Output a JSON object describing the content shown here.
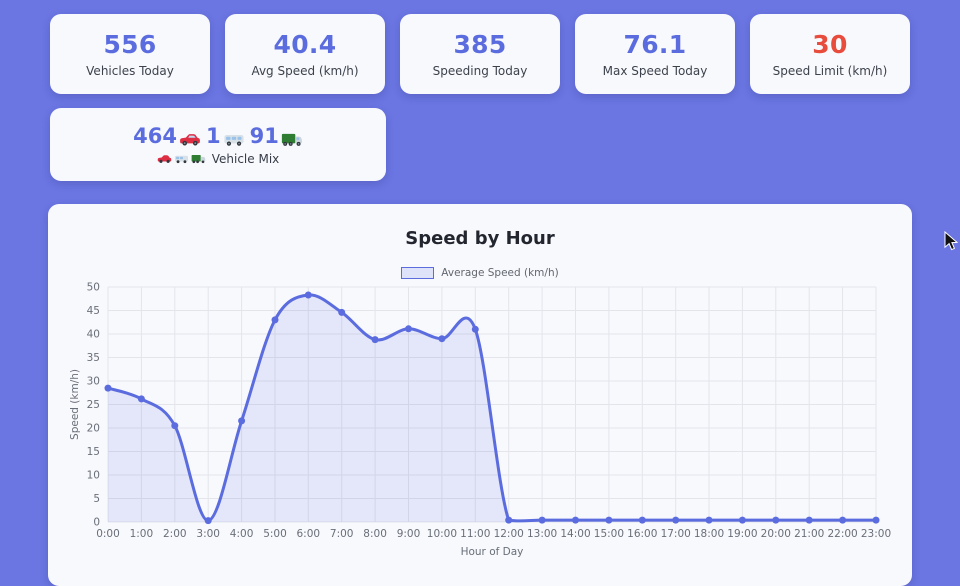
{
  "stats": [
    {
      "value": "556",
      "label": "Vehicles Today",
      "color": "#5b6cdf"
    },
    {
      "value": "40.4",
      "label": "Avg Speed (km/h)",
      "color": "#5b6cdf"
    },
    {
      "value": "385",
      "label": "Speeding Today",
      "color": "#5b6cdf"
    },
    {
      "value": "76.1",
      "label": "Max Speed Today",
      "color": "#5b6cdf"
    },
    {
      "value": "30",
      "label": "Speed Limit (km/h)",
      "color": "#e74c3c"
    }
  ],
  "vehicle_mix": {
    "items": [
      {
        "count": "464",
        "emoji": "🚗"
      },
      {
        "count": "1",
        "emoji": "🚐"
      },
      {
        "count": "91",
        "emoji": "🚛"
      }
    ],
    "label_emojis": "🚗🚐🚛",
    "label": "Vehicle Mix"
  },
  "chart_data": {
    "type": "line",
    "title": "Speed by Hour",
    "legend": "Average Speed (km/h)",
    "legend_position": "top",
    "xlabel": "Hour of Day",
    "ylabel": "Speed (km/h)",
    "x": [
      "0:00",
      "1:00",
      "2:00",
      "3:00",
      "4:00",
      "5:00",
      "6:00",
      "7:00",
      "8:00",
      "9:00",
      "10:00",
      "11:00",
      "12:00",
      "13:00",
      "14:00",
      "15:00",
      "16:00",
      "17:00",
      "18:00",
      "19:00",
      "20:00",
      "21:00",
      "22:00",
      "23:00"
    ],
    "values": [
      28.5,
      26.2,
      20.5,
      0.3,
      21.5,
      43.0,
      48.3,
      44.6,
      38.8,
      41.1,
      39.0,
      41.0,
      0.4,
      0.4,
      0.4,
      0.4,
      0.4,
      0.4,
      0.4,
      0.4,
      0.4,
      0.4,
      0.4,
      0.4
    ],
    "ylim": [
      0,
      50
    ],
    "ytick_step": 5,
    "grid": true,
    "line_color": "#5b6cdf",
    "fill_color": "rgba(91,108,223,0.13)",
    "swatch_fill": "#dfe3fa",
    "grid_color": "#e4e5ea",
    "tick_color": "#696e78"
  }
}
